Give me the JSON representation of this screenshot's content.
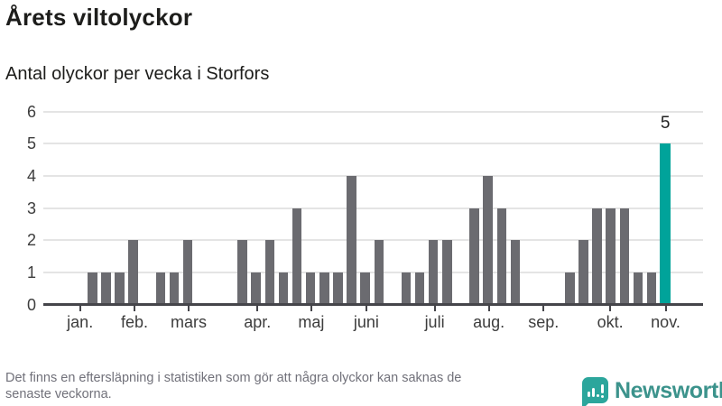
{
  "chart": {
    "title": "Årets viltolyckor",
    "subtitle": "Antal olyckor per vecka i Storfors"
  },
  "chart_data": {
    "type": "bar",
    "title": "Årets viltolyckor",
    "subtitle": "Antal olyckor per vecka i Storfors",
    "x_unit": "vecka",
    "values": [
      1,
      1,
      1,
      2,
      0,
      1,
      1,
      2,
      0,
      0,
      0,
      2,
      1,
      2,
      1,
      3,
      1,
      1,
      1,
      4,
      1,
      2,
      0,
      1,
      1,
      2,
      2,
      0,
      3,
      4,
      3,
      2,
      0,
      0,
      0,
      1,
      2,
      3,
      3,
      3,
      1,
      1,
      5
    ],
    "highlight_index": 42,
    "highlight_value_label": "5",
    "months": [
      {
        "label": "jan.",
        "slot": 0.1
      },
      {
        "label": "feb.",
        "slot": 4.09
      },
      {
        "label": "mars",
        "slot": 8.06
      },
      {
        "label": "apr.",
        "slot": 13.1
      },
      {
        "label": "maj",
        "slot": 17.05
      },
      {
        "label": "juni",
        "slot": 21.08
      },
      {
        "label": "juli",
        "slot": 26.09
      },
      {
        "label": "aug.",
        "slot": 30.06
      },
      {
        "label": "sep.",
        "slot": 34.07
      },
      {
        "label": "okt.",
        "slot": 38.96
      },
      {
        "label": "nov.",
        "slot": 43.02
      }
    ],
    "yticks": [
      0,
      1,
      2,
      3,
      4,
      5,
      6
    ],
    "ylim": [
      0,
      6
    ],
    "grid": "horizontal",
    "legend": "none",
    "colors": {
      "bar": "#6b6b70",
      "highlight": "#00a39a"
    }
  },
  "footnote": {
    "lines": [
      "Det finns en eftersläpning i statistiken som gör att några olyckor kan saknas de",
      "senaste veckorna."
    ]
  },
  "branding": {
    "name": "Newsworthy",
    "logo_color": "#2ca69c",
    "text_color": "#3c938c"
  }
}
